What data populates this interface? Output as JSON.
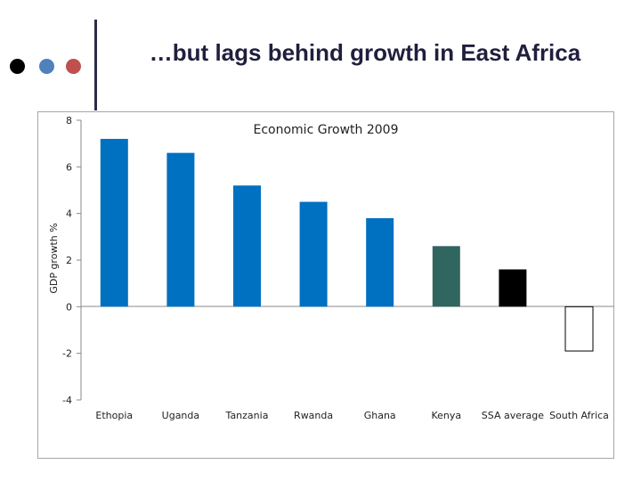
{
  "slide": {
    "title": "…but lags behind growth in East Africa",
    "decor_dot_colors": [
      "#000000",
      "#4f81bd",
      "#c0504d"
    ]
  },
  "chart_data": {
    "type": "bar",
    "title": "Economic Growth 2009",
    "xlabel": "",
    "ylabel": "GDP growth %",
    "ylim": [
      -4,
      8
    ],
    "yticks": [
      -4,
      -2,
      0,
      2,
      4,
      6,
      8
    ],
    "grid": false,
    "legend": "none",
    "categories": [
      "Ethopia",
      "Uganda",
      "Tanzania",
      "Rwanda",
      "Ghana",
      "Kenya",
      "SSA average",
      "South Africa"
    ],
    "values": [
      7.2,
      6.6,
      5.2,
      4.5,
      3.8,
      2.6,
      1.6,
      -1.9
    ],
    "bar_colors": [
      "#0070c0",
      "#0070c0",
      "#0070c0",
      "#0070c0",
      "#0070c0",
      "#31655f",
      "#000000",
      "#ffffff"
    ],
    "bar_outline_colors": [
      "none",
      "none",
      "none",
      "none",
      "none",
      "none",
      "none",
      "#000000"
    ]
  }
}
